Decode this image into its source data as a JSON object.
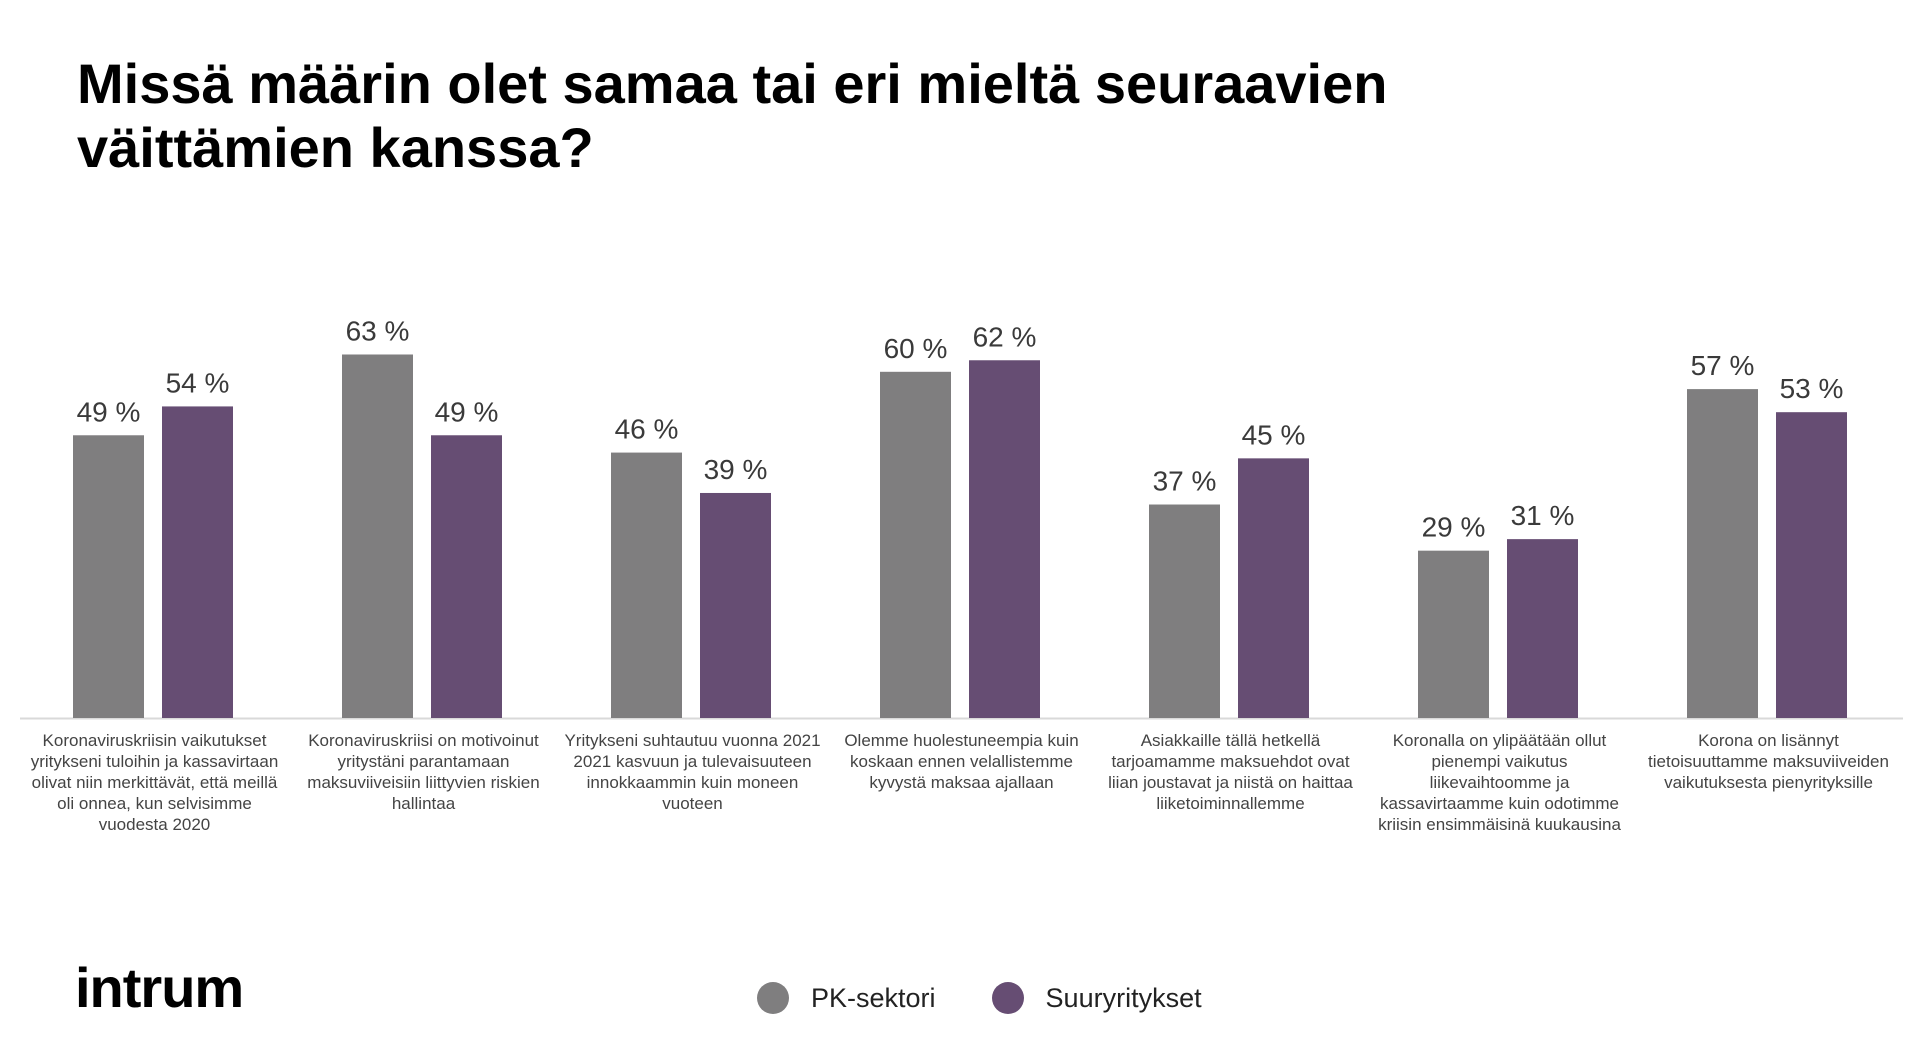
{
  "title": "Missä määrin olet samaa tai eri mieltä seuraavien väittämien kanssa?",
  "logo_text": "intrum",
  "colors": {
    "pk": "#7f7e7f",
    "suur": "#664d73",
    "axis": "#d9d9d9"
  },
  "chart_data": {
    "type": "bar",
    "title": "Missä määrin olet samaa tai eri mieltä seuraavien väittämien kanssa?",
    "legend_position": "bottom",
    "grid": false,
    "ylim": [
      0,
      70
    ],
    "categories": [
      "Koronaviruskriisin vaikutukset yritykseni tuloihin ja kassavirtaan olivat niin merkittävät, että meillä oli onnea, kun selvisimme vuodesta 2020",
      "Koronaviruskriisi on motivoinut yritystäni parantamaan maksuviiveisiin liittyvien riskien hallintaa",
      "Yritykseni suhtautuu vuonna 2021 kasvuun ja tulevaisuuteen innokkaammin kuin moneen vuoteen",
      "Olemme huolestuneempia kuin koskaan ennen velallistemme kyvystä maksaa ajallaan",
      "Asiakkaille tällä hetkellä tarjoamamme maksuehdot ovat liian joustavat ja niistä on haittaa liiketoiminnallemme",
      "Koronalla on ylipäätään ollut pienempi vaikutus liikevaihtoomme ja kassavirtaamme kuin odotimme kriisin ensimmäisinä kuukausina",
      "Korona on lisännyt tietoisuuttamme maksuviiveiden vaikutuksesta pienyrityksille"
    ],
    "category_lines": [
      [
        "Koronaviruskriisin vaikutukset",
        "yritykseni tuloihin ja kassavirtaan",
        "olivat niin merkittävät, että meillä",
        "oli onnea, kun selvisimme",
        "vuodesta 2020"
      ],
      [
        "Koronaviruskriisi on motivoinut",
        "yritystäni parantamaan",
        "maksuviiveisiin liittyvien riskien",
        "hallintaa"
      ],
      [
        "Yritykseni suhtautuu vuonna 2021",
        "2021 kasvuun ja tulevaisuuteen",
        "innokkaammin kuin moneen",
        "vuoteen"
      ],
      [
        "Olemme huolestuneempia kuin",
        "koskaan ennen velallistemme",
        "kyvystä maksaa ajallaan"
      ],
      [
        "Asiakkaille tällä hetkellä",
        "tarjoamamme maksuehdot ovat",
        "liian joustavat ja niistä on haittaa",
        "liiketoiminnallemme"
      ],
      [
        "Koronalla on ylipäätään ollut",
        "pienempi vaikutus",
        "liikevaihtoomme ja",
        "kassavirtaamme kuin odotimme",
        "kriisin ensimmäisinä kuukausina"
      ],
      [
        "Korona on lisännyt",
        "tietoisuuttamme maksuviiveiden",
        "vaikutuksesta pienyrityksille"
      ]
    ],
    "series": [
      {
        "name": "PK-sektori",
        "values": [
          49,
          63,
          46,
          60,
          37,
          29,
          57
        ],
        "labels": [
          "49 %",
          "63 %",
          "46 %",
          "60 %",
          "37 %",
          "29 %",
          "57 %"
        ]
      },
      {
        "name": "Suuryritykset",
        "values": [
          54,
          49,
          39,
          62,
          45,
          31,
          53
        ],
        "labels": [
          "54 %",
          "49 %",
          "39 %",
          "62 %",
          "45 %",
          "31 %",
          "53 %"
        ]
      }
    ]
  }
}
